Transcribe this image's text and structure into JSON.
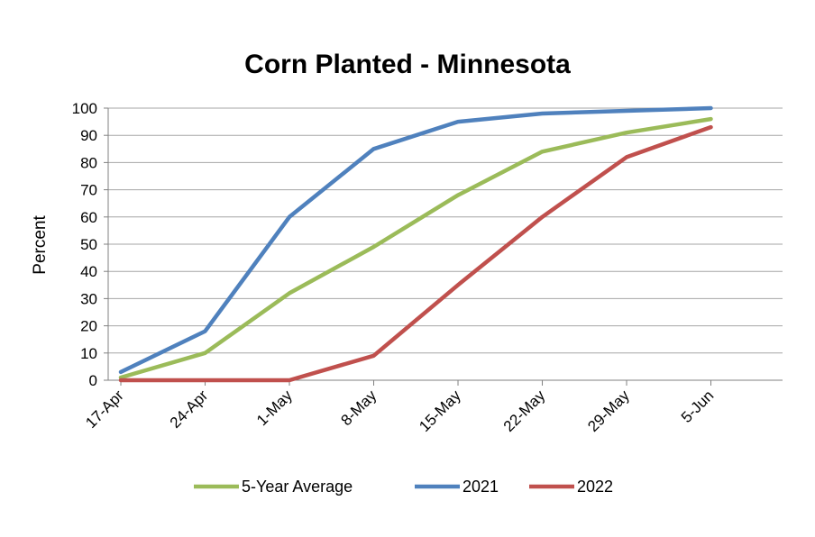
{
  "chart_data": {
    "type": "line",
    "title": "Corn Planted - Minnesota",
    "xlabel": "",
    "ylabel": "Percent",
    "categories": [
      "17-Apr",
      "24-Apr",
      "1-May",
      "8-May",
      "15-May",
      "22-May",
      "29-May",
      "5-Jun"
    ],
    "ylim": [
      0,
      100
    ],
    "yticks": [
      "0",
      "10",
      "20",
      "30",
      "40",
      "50",
      "60",
      "70",
      "80",
      "90",
      "100"
    ],
    "grid": true,
    "legend_position": "bottom",
    "series": [
      {
        "name": "5-Year Average",
        "color": "#9BBB59",
        "values": [
          1,
          10,
          32,
          49,
          68,
          84,
          91,
          96
        ]
      },
      {
        "name": "2021",
        "color": "#4F81BD",
        "values": [
          3,
          18,
          60,
          85,
          95,
          98,
          99,
          100
        ]
      },
      {
        "name": "2022",
        "color": "#C0504D",
        "values": [
          0,
          0,
          0,
          9,
          35,
          60,
          82,
          93
        ]
      }
    ]
  }
}
